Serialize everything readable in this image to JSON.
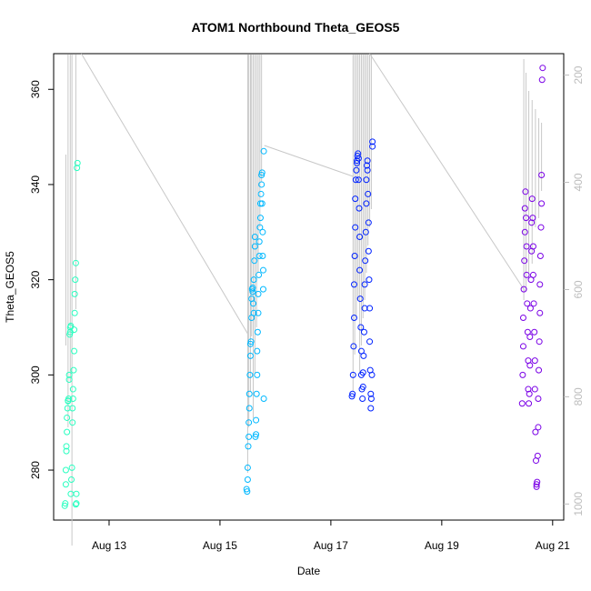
{
  "chart_data": {
    "type": "scatter",
    "title": "ATOM1 Northbound Theta_GEOS5",
    "xlabel": "Date",
    "ylabel": "Theta_GEOS5",
    "x_ticks": [
      "Aug 13",
      "Aug 15",
      "Aug 17",
      "Aug 19",
      "Aug 21"
    ],
    "x_tick_values": [
      13,
      15,
      17,
      19,
      21
    ],
    "xlim": [
      12.0,
      21.2
    ],
    "ylim": [
      269.5,
      367.5
    ],
    "y_ticks": [
      280,
      300,
      320,
      340,
      360
    ],
    "y2_label": "",
    "y2_ticks": [
      200,
      400,
      600,
      800,
      1000
    ],
    "y2_range_at_axis": [
      1030,
      160
    ],
    "grid": false,
    "legend": "none",
    "colors": {
      "g1": "#29ffc0",
      "g2": "#00b8ff",
      "g3": "#0022ff",
      "g4": "#7a00e6",
      "pressure_line": "#c8c8c8",
      "axis": "#000000",
      "right_axis": "#bdbdbd"
    },
    "series": [
      {
        "color": "#29ffc0",
        "x": [
          12.2,
          12.21,
          12.22,
          12.22,
          12.23,
          12.23,
          12.24,
          12.24,
          12.25,
          12.26,
          12.26,
          12.27,
          12.28,
          12.28,
          12.29,
          12.3,
          12.3,
          12.31,
          12.31,
          12.32,
          12.33,
          12.34,
          12.34,
          12.35,
          12.35,
          12.36,
          12.37,
          12.37,
          12.38,
          12.38,
          12.39,
          12.4,
          12.4,
          12.41,
          12.41,
          12.42,
          12.43
        ],
        "y": [
          272.5,
          273.0,
          277.0,
          280.0,
          284.0,
          285.0,
          288.0,
          291.0,
          293.0,
          294.5,
          294.6,
          295.0,
          299.0,
          300.0,
          308.5,
          309.0,
          310.0,
          310.3,
          275.0,
          278.0,
          280.5,
          290.0,
          293.0,
          295.0,
          297.0,
          301.0,
          305.0,
          309.5,
          313.0,
          317.0,
          320.0,
          323.5,
          272.8,
          273.0,
          275.0,
          343.5,
          344.5
        ]
      },
      {
        "color": "#00b8ff",
        "x": [
          15.48,
          15.49,
          15.5,
          15.5,
          15.51,
          15.52,
          15.52,
          15.53,
          15.53,
          15.54,
          15.55,
          15.55,
          15.56,
          15.57,
          15.57,
          15.58,
          15.59,
          15.59,
          15.6,
          15.61,
          15.61,
          15.62,
          15.63,
          15.63,
          15.64,
          15.65,
          15.65,
          15.66,
          15.67,
          15.67,
          15.68,
          15.69,
          15.69,
          15.7,
          15.71,
          15.71,
          15.72,
          15.73,
          15.73,
          15.74,
          15.75,
          15.75,
          15.76,
          15.76,
          15.77,
          15.77,
          15.78,
          15.78,
          15.79,
          15.79
        ],
        "y": [
          276.0,
          275.5,
          278.0,
          280.5,
          285.0,
          287.0,
          290.0,
          293.0,
          296.0,
          300.0,
          304.0,
          306.5,
          307.0,
          312.0,
          316.0,
          318.0,
          317.5,
          318.3,
          315.0,
          313.0,
          320.0,
          324.0,
          327.0,
          329.0,
          287.0,
          287.5,
          290.5,
          296.0,
          300.0,
          305.0,
          309.0,
          313.0,
          317.0,
          321.0,
          325.0,
          328.0,
          331.0,
          333.0,
          336.0,
          338.0,
          340.0,
          342.0,
          342.5,
          336.0,
          330.0,
          325.0,
          322.0,
          318.0,
          295.0,
          347.0
        ]
      },
      {
        "color": "#0022ff",
        "x": [
          17.38,
          17.39,
          17.4,
          17.41,
          17.42,
          17.42,
          17.43,
          17.44,
          17.44,
          17.45,
          17.46,
          17.47,
          17.47,
          17.48,
          17.49,
          17.5,
          17.5,
          17.51,
          17.52,
          17.52,
          17.53,
          17.54,
          17.55,
          17.55,
          17.56,
          17.57,
          17.58,
          17.58,
          17.59,
          17.6,
          17.61,
          17.61,
          17.62,
          17.63,
          17.64,
          17.64,
          17.65,
          17.66,
          17.66,
          17.67,
          17.68,
          17.68,
          17.69,
          17.7,
          17.7,
          17.71,
          17.72,
          17.72,
          17.73,
          17.74,
          17.75,
          17.75
        ],
        "y": [
          295.5,
          296.0,
          300.0,
          306.0,
          312.0,
          319.0,
          325.0,
          331.0,
          337.0,
          341.0,
          343.0,
          344.5,
          345.0,
          346.0,
          346.5,
          345.5,
          341.0,
          335.0,
          329.0,
          322.0,
          316.0,
          310.0,
          305.0,
          300.0,
          297.0,
          295.0,
          297.5,
          300.5,
          304.0,
          309.0,
          314.0,
          319.0,
          324.0,
          330.0,
          336.0,
          341.0,
          344.0,
          345.0,
          343.0,
          338.0,
          332.0,
          326.0,
          320.0,
          314.0,
          307.0,
          301.0,
          296.0,
          293.0,
          295.0,
          300.0,
          348.0,
          349.0
        ]
      },
      {
        "color": "#7a00e6",
        "x": [
          20.45,
          20.46,
          20.47,
          20.47,
          20.48,
          20.49,
          20.5,
          20.5,
          20.51,
          20.52,
          20.53,
          20.53,
          20.54,
          20.55,
          20.56,
          20.56,
          20.57,
          20.58,
          20.59,
          20.59,
          20.6,
          20.61,
          20.62,
          20.62,
          20.63,
          20.64,
          20.65,
          20.65,
          20.66,
          20.67,
          20.68,
          20.68,
          20.69,
          20.7,
          20.71,
          20.71,
          20.72,
          20.73,
          20.74,
          20.74,
          20.75,
          20.76,
          20.77,
          20.77,
          20.78,
          20.79,
          20.8,
          20.8,
          20.81,
          20.82
        ],
        "y": [
          294.0,
          300.0,
          306.0,
          312.0,
          318.0,
          324.0,
          330.0,
          335.0,
          338.5,
          333.0,
          327.0,
          321.0,
          315.0,
          309.0,
          303.0,
          297.0,
          294.0,
          296.0,
          302.0,
          308.0,
          314.0,
          320.0,
          326.0,
          332.0,
          337.0,
          333.0,
          327.0,
          321.0,
          315.0,
          309.0,
          303.0,
          297.0,
          288.0,
          282.0,
          277.0,
          276.5,
          277.5,
          283.0,
          289.0,
          295.0,
          301.0,
          307.0,
          313.0,
          319.0,
          325.0,
          331.0,
          336.0,
          342.0,
          362.0,
          364.5
        ]
      }
    ]
  }
}
